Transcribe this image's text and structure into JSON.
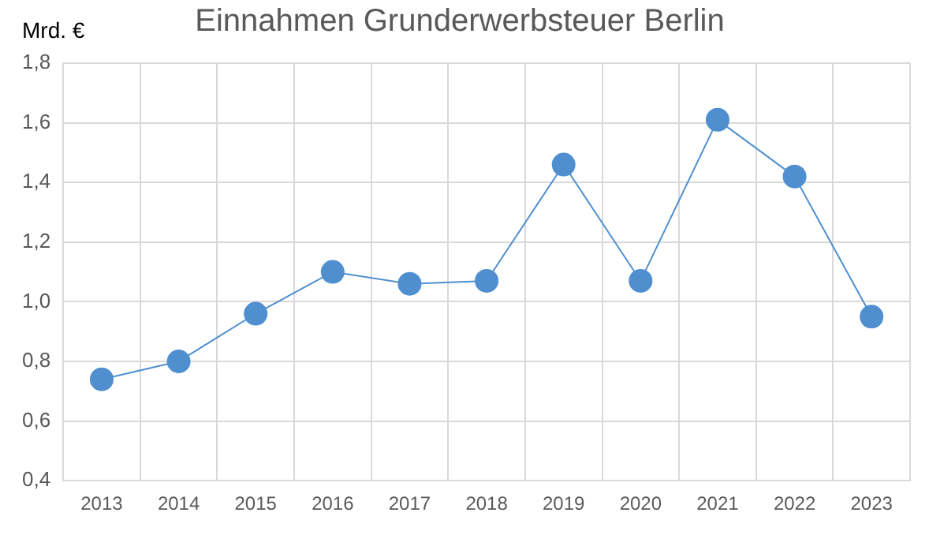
{
  "chart_data": {
    "type": "line",
    "title": "Einnahmen Grunderwerbsteuer Berlin",
    "ylabel": "Mrd. €",
    "categories": [
      "2013",
      "2014",
      "2015",
      "2016",
      "2017",
      "2018",
      "2019",
      "2020",
      "2021",
      "2022",
      "2023"
    ],
    "series": [
      {
        "color": "#4f8fd0",
        "values": [
          0.74,
          0.8,
          0.96,
          1.1,
          1.06,
          1.07,
          1.46,
          1.07,
          1.61,
          1.42,
          0.95
        ]
      }
    ],
    "ylim": [
      0.4,
      1.8
    ],
    "yticks": [
      {
        "value": 0.4,
        "label": "0,4"
      },
      {
        "value": 0.6,
        "label": "0,6"
      },
      {
        "value": 0.8,
        "label": "0,8"
      },
      {
        "value": 1.0,
        "label": "1,0"
      },
      {
        "value": 1.2,
        "label": "1,2"
      },
      {
        "value": 1.4,
        "label": "1,4"
      },
      {
        "value": 1.6,
        "label": "1,6"
      },
      {
        "value": 1.8,
        "label": "1,8"
      }
    ],
    "grid": true,
    "legend": false,
    "marker": "circle",
    "line_style": "solid"
  }
}
